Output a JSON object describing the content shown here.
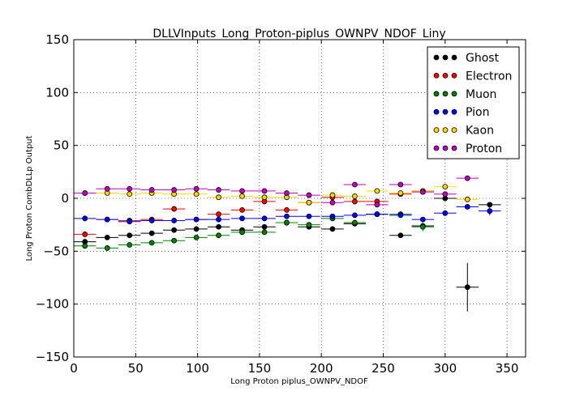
{
  "chart_data": {
    "type": "scatter",
    "title": "DLLVInputs_Long_Proton-piplus_OWNPV_NDOF_Liny",
    "xlabel": "Long Proton piplus_OWNPV_NDOF",
    "ylabel": "Long Proton CombDLLp Output",
    "xlim": [
      0,
      365
    ],
    "ylim": [
      -150,
      150
    ],
    "x_ticks": [
      "0",
      "50",
      "100",
      "150",
      "200",
      "250",
      "300",
      "350"
    ],
    "y_ticks": [
      "−150",
      "−100",
      "−50",
      "0",
      "50",
      "100",
      "150"
    ],
    "grid": true,
    "legend_position": "top-right",
    "x_bin_halfwidth": 9,
    "series": [
      {
        "name": "Ghost",
        "color": "#000000",
        "x": [
          9,
          27,
          45,
          63,
          81,
          99,
          117,
          136,
          154,
          172,
          190,
          209,
          227,
          245,
          264,
          282,
          300,
          318,
          336
        ],
        "y": [
          -41,
          -37,
          -35,
          -33,
          -30,
          -29,
          -27,
          -30,
          -27,
          -23,
          -27,
          -29,
          -24,
          -15,
          -35,
          -26,
          0,
          -84,
          -6
        ],
        "err": [
          1,
          1,
          1,
          1,
          1,
          1,
          1,
          1,
          1,
          1,
          1,
          1,
          1,
          1,
          2,
          3,
          2,
          23,
          2
        ]
      },
      {
        "name": "Electron",
        "color": "#ff0000",
        "x": [
          9,
          27,
          45,
          63,
          81,
          99,
          117,
          136,
          154,
          172,
          190,
          209,
          227,
          245,
          264,
          282
        ],
        "y": [
          -34,
          -20,
          -21,
          -20,
          -10,
          -20,
          -15,
          -11,
          -3,
          -11,
          -4,
          1,
          -3,
          -3,
          4,
          7
        ],
        "err": [
          1,
          1,
          1,
          1,
          1,
          1,
          1,
          1,
          1,
          1,
          1,
          1,
          1,
          2,
          2,
          2
        ]
      },
      {
        "name": "Muon",
        "color": "#008000",
        "x": [
          9,
          27,
          45,
          63,
          81,
          99,
          117,
          136,
          154,
          172,
          190,
          209,
          227,
          245,
          264,
          282
        ],
        "y": [
          -45,
          -47,
          -44,
          -42,
          -40,
          -37,
          -35,
          -32,
          -32,
          -23,
          -25,
          -19,
          -23,
          -15,
          -15,
          -27
        ],
        "err": [
          1,
          1,
          1,
          1,
          1,
          1,
          1,
          1,
          1,
          1,
          1,
          2,
          1,
          2,
          3,
          4
        ]
      },
      {
        "name": "Pion",
        "color": "#0000ff",
        "x": [
          9,
          27,
          45,
          63,
          81,
          99,
          117,
          136,
          154,
          172,
          190,
          209,
          227,
          245,
          264,
          282,
          300,
          318,
          336
        ],
        "y": [
          -19,
          -20,
          -22,
          -21,
          -21,
          -20,
          -20,
          -19,
          -19,
          -17,
          -17,
          -17,
          -16,
          -15,
          -16,
          -20,
          -14,
          -8,
          -12
        ],
        "err": [
          1,
          1,
          1,
          1,
          1,
          1,
          1,
          1,
          1,
          1,
          1,
          1,
          1,
          1,
          1,
          2,
          1,
          2,
          4
        ]
      },
      {
        "name": "Kaon",
        "color": "#ffd700",
        "x": [
          9,
          27,
          45,
          63,
          81,
          99,
          117,
          136,
          154,
          172,
          190,
          209,
          227,
          245,
          264,
          282,
          300,
          318
        ],
        "y": [
          5,
          5,
          4,
          5,
          4,
          4,
          1,
          2,
          1,
          1,
          -4,
          3,
          2,
          7,
          5,
          7,
          11,
          -1
        ],
        "err": [
          1,
          1,
          1,
          1,
          1,
          1,
          1,
          1,
          1,
          1,
          1,
          1,
          1,
          1,
          1,
          1,
          2,
          1
        ]
      },
      {
        "name": "Proton",
        "color": "#bf00bf",
        "x": [
          9,
          27,
          45,
          63,
          81,
          99,
          117,
          136,
          154,
          172,
          190,
          209,
          227,
          245,
          264,
          282,
          300,
          318
        ],
        "y": [
          5,
          9,
          9,
          8,
          8,
          9,
          8,
          7,
          7,
          5,
          3,
          -4,
          13,
          -6,
          13,
          6,
          4,
          19
        ],
        "err": [
          1,
          1,
          1,
          1,
          1,
          1,
          1,
          1,
          1,
          1,
          1,
          1,
          1,
          1,
          1,
          1,
          2,
          2
        ]
      }
    ]
  }
}
